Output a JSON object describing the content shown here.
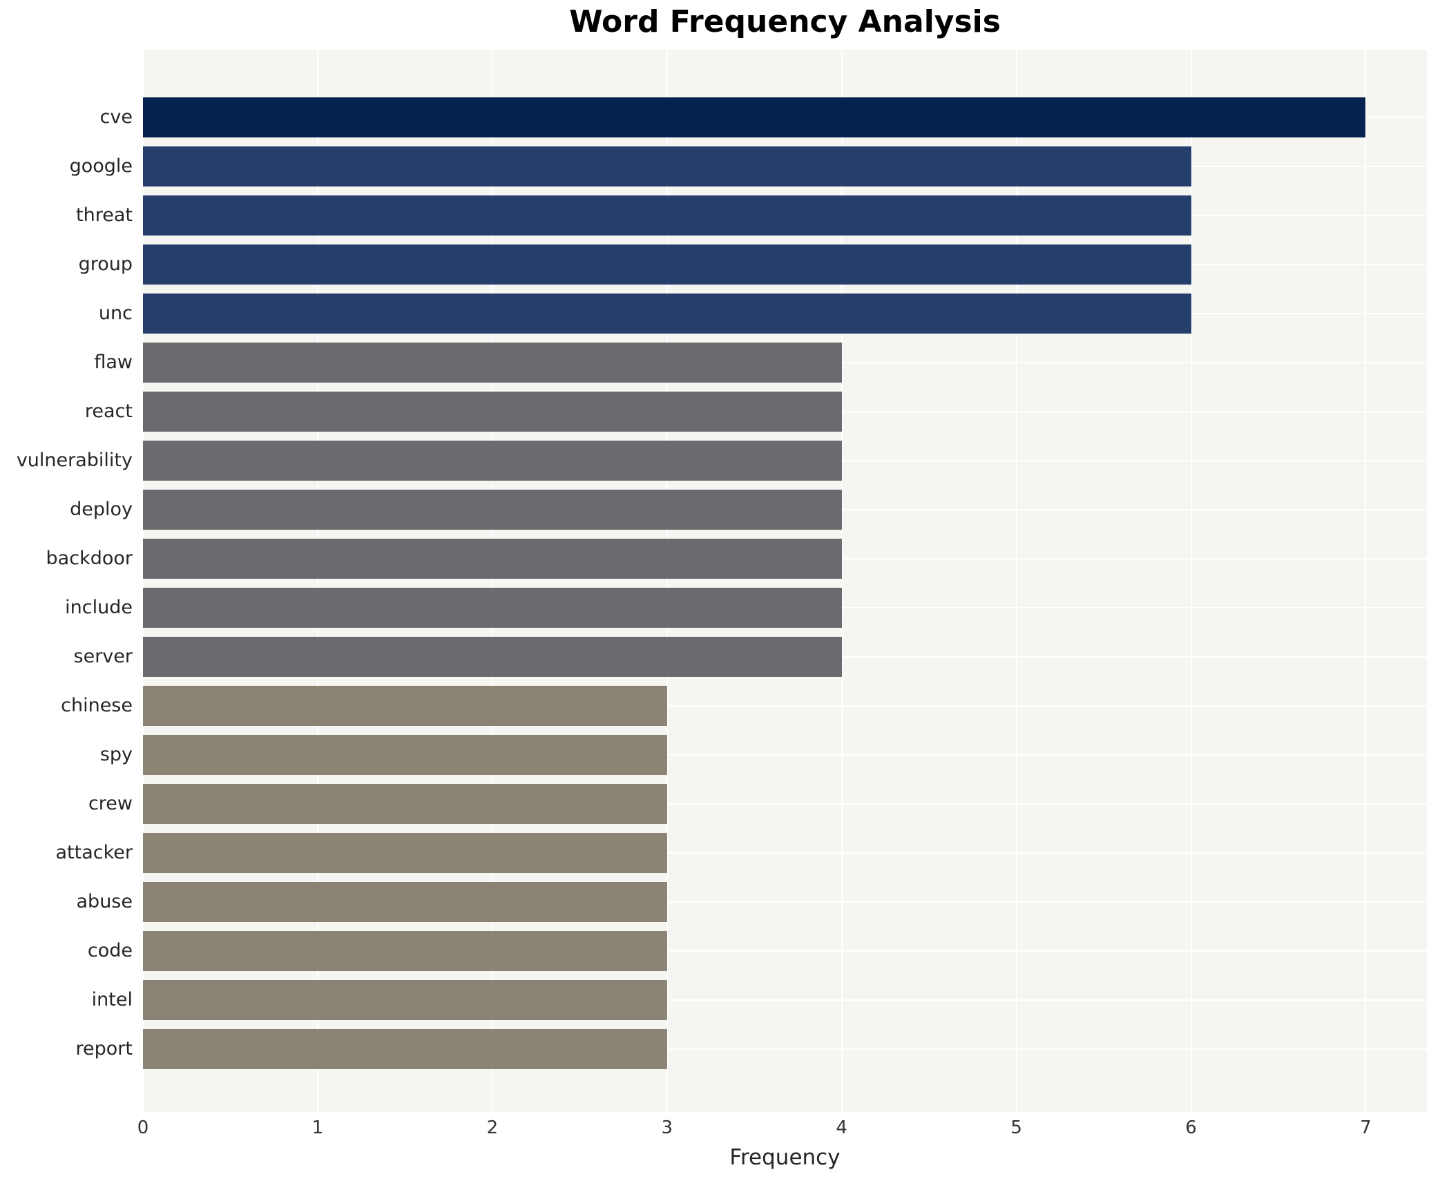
{
  "chart_data": {
    "type": "bar",
    "orientation": "horizontal",
    "title": "Word Frequency Analysis",
    "xlabel": "Frequency",
    "ylabel": "",
    "categories": [
      "cve",
      "google",
      "threat",
      "group",
      "unc",
      "flaw",
      "react",
      "vulnerability",
      "deploy",
      "backdoor",
      "include",
      "server",
      "chinese",
      "spy",
      "crew",
      "attacker",
      "abuse",
      "code",
      "intel",
      "report"
    ],
    "values": [
      7,
      6,
      6,
      6,
      6,
      4,
      4,
      4,
      4,
      4,
      4,
      4,
      3,
      3,
      3,
      3,
      3,
      3,
      3,
      3
    ],
    "bar_colors": [
      "#04224d",
      "#263e6c",
      "#263e6c",
      "#263e6c",
      "#263e6c",
      "#6b6b6f",
      "#6b6b6f",
      "#6b6b6f",
      "#6b6b6f",
      "#6b6b6f",
      "#6b6b6f",
      "#6b6b6f",
      "#8b8474",
      "#8b8474",
      "#8b8474",
      "#8b8474",
      "#8b8474",
      "#8b8474",
      "#8b8474",
      "#8b8474"
    ],
    "xticks": [
      0,
      1,
      2,
      3,
      4,
      5,
      6,
      7
    ],
    "xlim": [
      0,
      7.35
    ],
    "grid": true,
    "legend_position": "none",
    "plot_background": "#f5f5f2",
    "gridline_color": "#ffffff"
  }
}
